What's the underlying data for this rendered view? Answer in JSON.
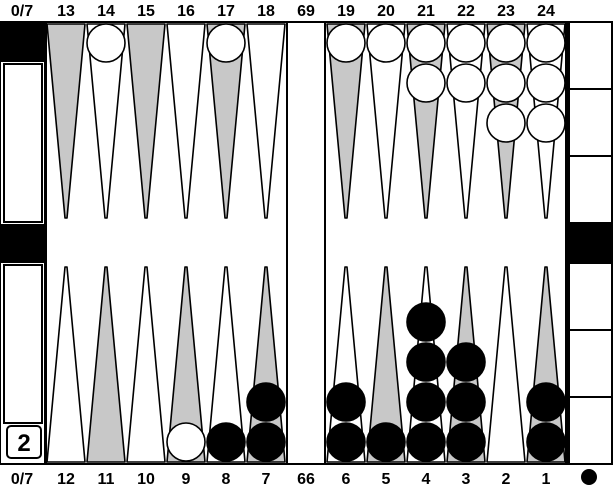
{
  "colors": {
    "background": "#ffffff",
    "outline": "#000000",
    "point_light": "#ffffff",
    "point_dark": "#c8c8c8",
    "checker_white": "#ffffff",
    "checker_black": "#000000"
  },
  "top_labels": {
    "pip_left": "0/7",
    "points": [
      "13",
      "14",
      "15",
      "16",
      "17",
      "18",
      "69",
      "19",
      "20",
      "21",
      "22",
      "23",
      "24"
    ]
  },
  "bottom_labels": {
    "pip_left": "0/7",
    "points": [
      "12",
      "11",
      "10",
      "9",
      "8",
      "7",
      "66",
      "6",
      "5",
      "4",
      "3",
      "2",
      "1"
    ],
    "turn_icon": "black-dot-icon"
  },
  "cube": {
    "value": "2"
  },
  "top_points": [
    {
      "label": "13",
      "shade": "dark",
      "checkers": 0,
      "color": "none"
    },
    {
      "label": "14",
      "shade": "light",
      "checkers": 1,
      "color": "white"
    },
    {
      "label": "15",
      "shade": "dark",
      "checkers": 0,
      "color": "none"
    },
    {
      "label": "16",
      "shade": "light",
      "checkers": 0,
      "color": "none"
    },
    {
      "label": "17",
      "shade": "dark",
      "checkers": 1,
      "color": "white"
    },
    {
      "label": "18",
      "shade": "light",
      "checkers": 0,
      "color": "none"
    },
    {
      "label": "19",
      "shade": "dark",
      "checkers": 1,
      "color": "white"
    },
    {
      "label": "20",
      "shade": "light",
      "checkers": 1,
      "color": "white"
    },
    {
      "label": "21",
      "shade": "dark",
      "checkers": 2,
      "color": "white"
    },
    {
      "label": "22",
      "shade": "light",
      "checkers": 2,
      "color": "white"
    },
    {
      "label": "23",
      "shade": "dark",
      "checkers": 3,
      "color": "white"
    },
    {
      "label": "24",
      "shade": "light",
      "checkers": 3,
      "color": "white"
    }
  ],
  "bottom_points": [
    {
      "label": "12",
      "shade": "light",
      "checkers": 0,
      "color": "none"
    },
    {
      "label": "11",
      "shade": "dark",
      "checkers": 0,
      "color": "none"
    },
    {
      "label": "10",
      "shade": "light",
      "checkers": 0,
      "color": "none"
    },
    {
      "label": "9",
      "shade": "dark",
      "checkers": 1,
      "color": "white"
    },
    {
      "label": "8",
      "shade": "light",
      "checkers": 1,
      "color": "black"
    },
    {
      "label": "7",
      "shade": "dark",
      "checkers": 2,
      "color": "black"
    },
    {
      "label": "6",
      "shade": "light",
      "checkers": 2,
      "color": "black"
    },
    {
      "label": "5",
      "shade": "dark",
      "checkers": 1,
      "color": "black"
    },
    {
      "label": "4",
      "shade": "light",
      "checkers": 4,
      "color": "black"
    },
    {
      "label": "3",
      "shade": "dark",
      "checkers": 3,
      "color": "black"
    },
    {
      "label": "2",
      "shade": "light",
      "checkers": 0,
      "color": "none"
    },
    {
      "label": "1",
      "shade": "dark",
      "checkers": 2,
      "color": "black"
    }
  ],
  "bar": {
    "checkers": 0
  },
  "left_tray": {
    "top_borne_off": 0,
    "bottom_borne_off": 0
  },
  "right_tray": {
    "top_borne_off": 0,
    "bottom_borne_off": 0
  }
}
